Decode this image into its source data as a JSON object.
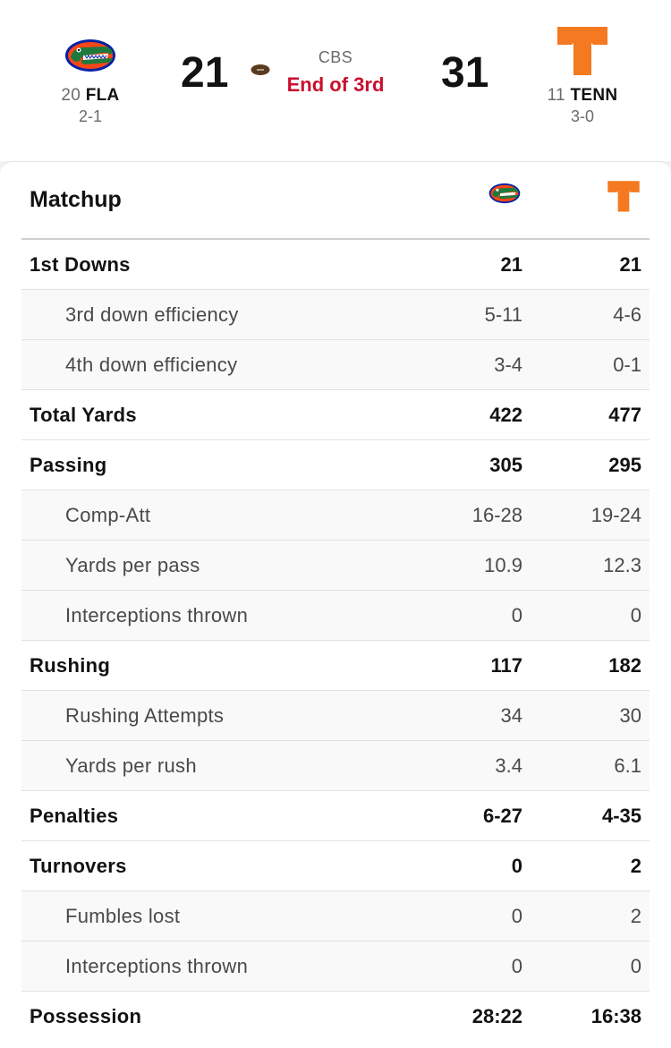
{
  "game": {
    "away": {
      "rank": "20",
      "abbr": "FLA",
      "record": "2-1",
      "score": "21"
    },
    "home": {
      "rank": "11",
      "abbr": "TENN",
      "record": "3-0",
      "score": "31"
    },
    "network": "CBS",
    "status": "End of 3rd"
  },
  "matchup": {
    "title": "Matchup",
    "rows": [
      {
        "label": "1st Downs",
        "fla": "21",
        "tenn": "21"
      },
      {
        "label": "3rd down efficiency",
        "fla": "5-11",
        "tenn": "4-6"
      },
      {
        "label": "4th down efficiency",
        "fla": "3-4",
        "tenn": "0-1"
      },
      {
        "label": "Total Yards",
        "fla": "422",
        "tenn": "477"
      },
      {
        "label": "Passing",
        "fla": "305",
        "tenn": "295"
      },
      {
        "label": "Comp-Att",
        "fla": "16-28",
        "tenn": "19-24"
      },
      {
        "label": "Yards per pass",
        "fla": "10.9",
        "tenn": "12.3"
      },
      {
        "label": "Interceptions thrown",
        "fla": "0",
        "tenn": "0"
      },
      {
        "label": "Rushing",
        "fla": "117",
        "tenn": "182"
      },
      {
        "label": "Rushing Attempts",
        "fla": "34",
        "tenn": "30"
      },
      {
        "label": "Yards per rush",
        "fla": "3.4",
        "tenn": "6.1"
      },
      {
        "label": "Penalties",
        "fla": "6-27",
        "tenn": "4-35"
      },
      {
        "label": "Turnovers",
        "fla": "0",
        "tenn": "2"
      },
      {
        "label": "Fumbles lost",
        "fla": "0",
        "tenn": "2"
      },
      {
        "label": "Interceptions thrown",
        "fla": "0",
        "tenn": "0"
      },
      {
        "label": "Possession",
        "fla": "28:22",
        "tenn": "16:38"
      }
    ]
  },
  "colors": {
    "status_red": "#c8102e",
    "tenn_orange": "#f47920",
    "fla_blue": "#0021a5",
    "fla_orange": "#fa4616",
    "gator_green": "#1e7a3c"
  },
  "icons": {
    "away_logo": "florida-gator-logo",
    "home_logo": "tennessee-power-t-logo",
    "possession": "football-icon"
  }
}
